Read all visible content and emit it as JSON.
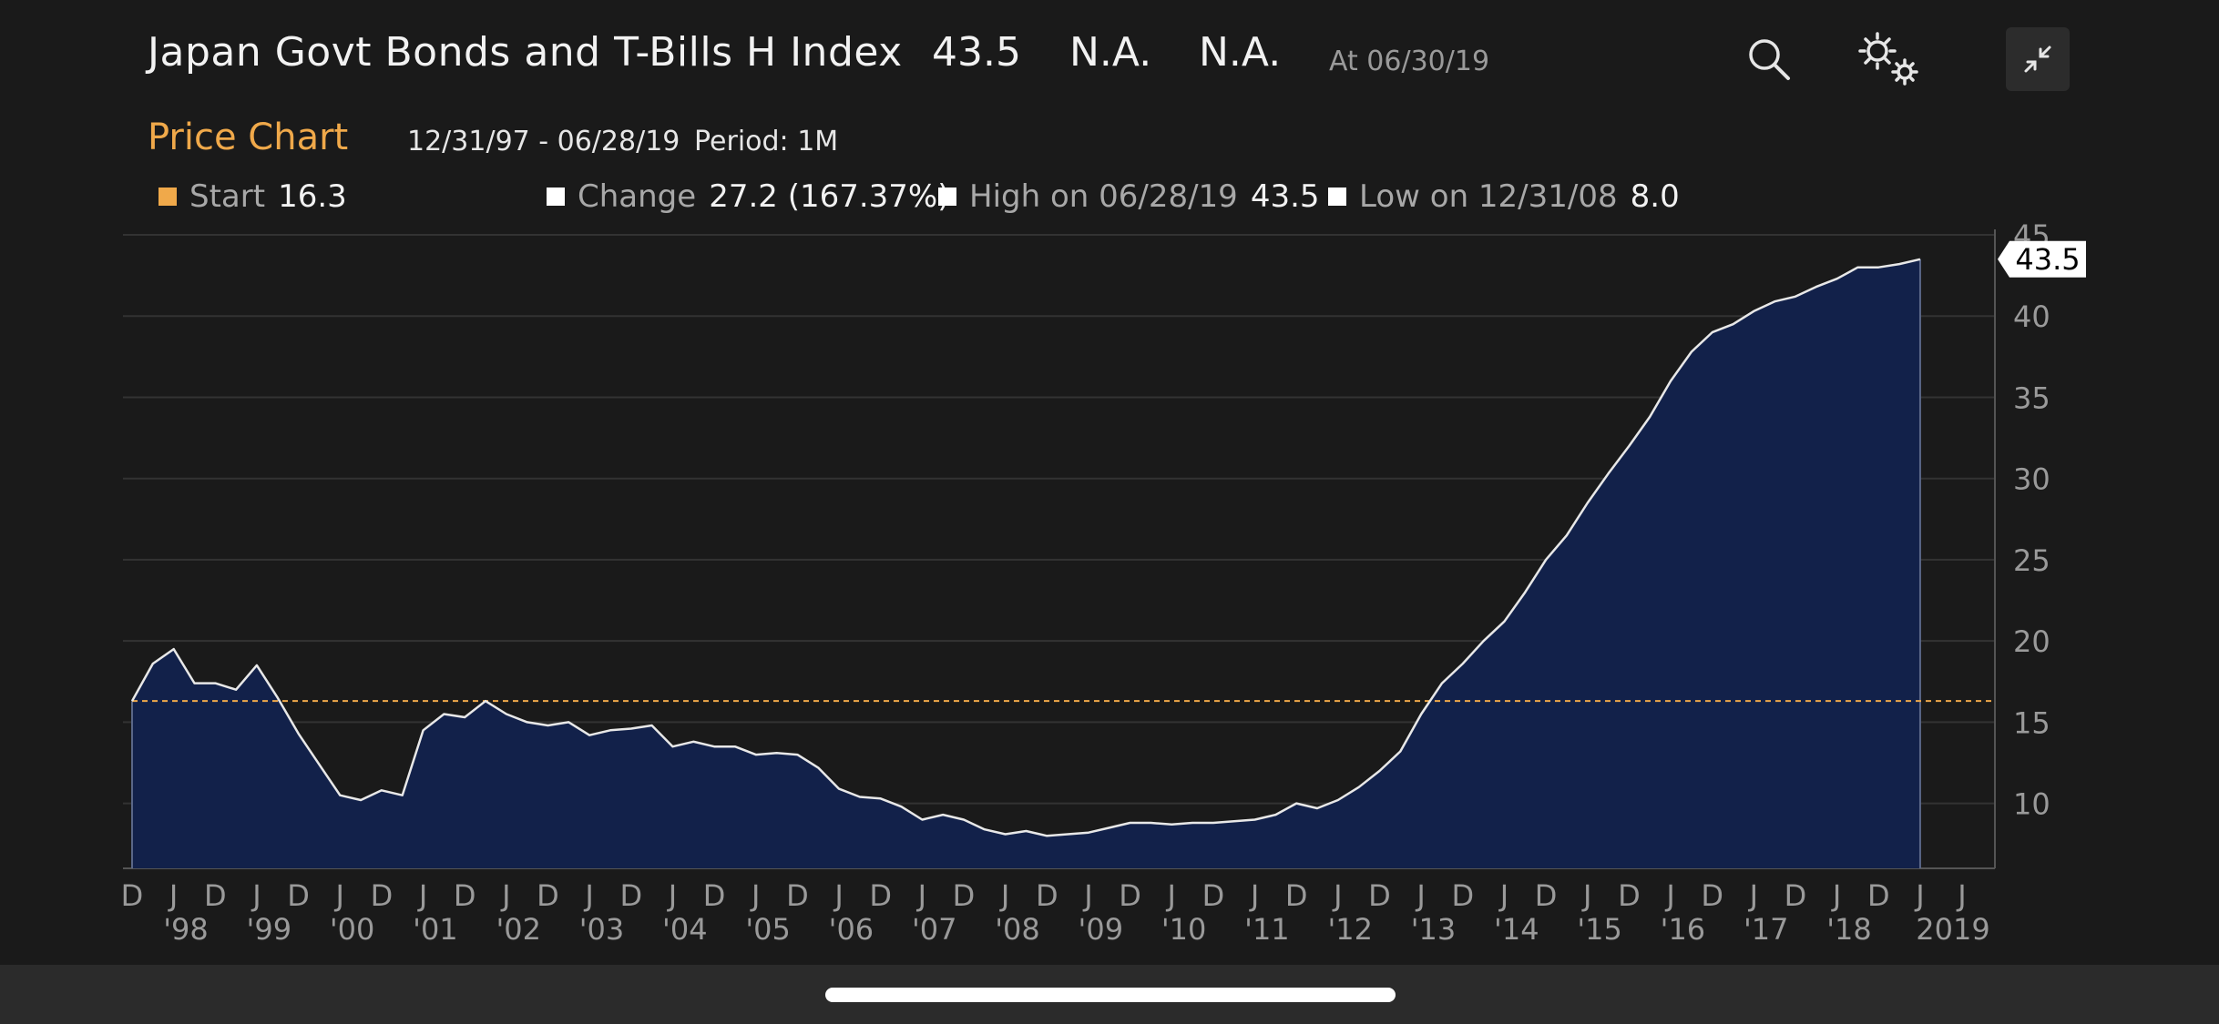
{
  "header": {
    "title": "Japan Govt Bonds and T-Bills H Index",
    "last_value": "43.5",
    "field2": "N.A.",
    "field3": "N.A.",
    "as_of": "At 06/30/19",
    "icons": [
      "search-icon",
      "settings-icon",
      "collapse-icon"
    ]
  },
  "subheader": {
    "title": "Price Chart",
    "date_range": "12/31/97 - 06/28/19",
    "period": "Period: 1M"
  },
  "legend": {
    "start": {
      "label": "Start",
      "value": "16.3",
      "color": "#f0a94a"
    },
    "change": {
      "label": "Change",
      "value": "27.2 (167.37%)",
      "color": "#ffffff"
    },
    "high": {
      "label": "High on 06/28/19",
      "value": "43.5",
      "color": "#ffffff"
    },
    "low": {
      "label": "Low on 12/31/08",
      "value": "8.0",
      "color": "#ffffff"
    }
  },
  "chart_data": {
    "type": "area",
    "ylim": [
      6,
      45
    ],
    "yticks": [
      10,
      15,
      20,
      25,
      30,
      35,
      40,
      45
    ],
    "grid": true,
    "last_value_label": "43.5",
    "reference_line": {
      "value": 16.3,
      "color": "#f0a94a"
    },
    "line_color": "#e8e8e8",
    "fill_color": "#12214a",
    "x_month_labels": [
      "D",
      "J",
      "D",
      "J",
      "D",
      "J",
      "D",
      "J",
      "D",
      "J",
      "D",
      "J",
      "D",
      "J",
      "D",
      "J",
      "D",
      "J",
      "D",
      "J",
      "D",
      "J",
      "D",
      "J",
      "D",
      "J",
      "D",
      "J",
      "D",
      "J",
      "D",
      "J",
      "D",
      "J",
      "D",
      "J",
      "D",
      "J",
      "D",
      "J",
      "D",
      "J",
      "D",
      "J",
      "J"
    ],
    "x_year_labels": [
      "'98",
      "'99",
      "'00",
      "'01",
      "'02",
      "'03",
      "'04",
      "'05",
      "'06",
      "'07",
      "'08",
      "'09",
      "'10",
      "'11",
      "'12",
      "'13",
      "'14",
      "'15",
      "'16",
      "'17",
      "'18",
      "2019"
    ],
    "series": [
      {
        "x": [
          "1997-12",
          "1998-03",
          "1998-06",
          "1998-09",
          "1998-12",
          "1999-03",
          "1999-06",
          "1999-09",
          "1999-12",
          "2000-03",
          "2000-06",
          "2000-09",
          "2000-12",
          "2001-03",
          "2001-06",
          "2001-09",
          "2001-12",
          "2002-03",
          "2002-06",
          "2002-09",
          "2002-12",
          "2003-03",
          "2003-06",
          "2003-09",
          "2003-12",
          "2004-03",
          "2004-06",
          "2004-09",
          "2004-12",
          "2005-03",
          "2005-06",
          "2005-09",
          "2005-12",
          "2006-03",
          "2006-06",
          "2006-09",
          "2006-12",
          "2007-03",
          "2007-06",
          "2007-09",
          "2007-12",
          "2008-03",
          "2008-06",
          "2008-09",
          "2008-12",
          "2009-03",
          "2009-06",
          "2009-09",
          "2009-12",
          "2010-03",
          "2010-06",
          "2010-09",
          "2010-12",
          "2011-03",
          "2011-06",
          "2011-09",
          "2011-12",
          "2012-03",
          "2012-06",
          "2012-09",
          "2012-12",
          "2013-03",
          "2013-06",
          "2013-09",
          "2013-12",
          "2014-03",
          "2014-06",
          "2014-09",
          "2014-12",
          "2015-03",
          "2015-06",
          "2015-09",
          "2015-12",
          "2016-03",
          "2016-06",
          "2016-09",
          "2016-12",
          "2017-03",
          "2017-06",
          "2017-09",
          "2017-12",
          "2018-03",
          "2018-06",
          "2018-09",
          "2018-12",
          "2019-03",
          "2019-06"
        ],
        "values": [
          16.3,
          18.6,
          19.5,
          17.4,
          17.4,
          17.0,
          18.5,
          16.5,
          14.3,
          12.4,
          10.5,
          10.2,
          10.8,
          10.5,
          14.5,
          15.5,
          15.3,
          16.3,
          15.5,
          15.0,
          14.8,
          15.0,
          14.2,
          14.5,
          14.6,
          14.8,
          13.5,
          13.8,
          13.5,
          13.5,
          13.0,
          13.1,
          13.0,
          12.2,
          10.9,
          10.4,
          10.3,
          9.8,
          9.0,
          9.3,
          9.0,
          8.4,
          8.1,
          8.3,
          8.0,
          8.1,
          8.2,
          8.5,
          8.8,
          8.8,
          8.7,
          8.8,
          8.8,
          8.9,
          9.0,
          9.3,
          10.0,
          9.7,
          10.2,
          11.0,
          12.0,
          13.2,
          15.5,
          17.4,
          18.6,
          20.0,
          21.2,
          23.0,
          25.0,
          26.5,
          28.5,
          30.3,
          32.0,
          33.8,
          36.0,
          37.8,
          39.0,
          39.5,
          40.3,
          40.9,
          41.2,
          41.8,
          42.3,
          43.0,
          43.0,
          43.2,
          43.5
        ]
      }
    ]
  }
}
